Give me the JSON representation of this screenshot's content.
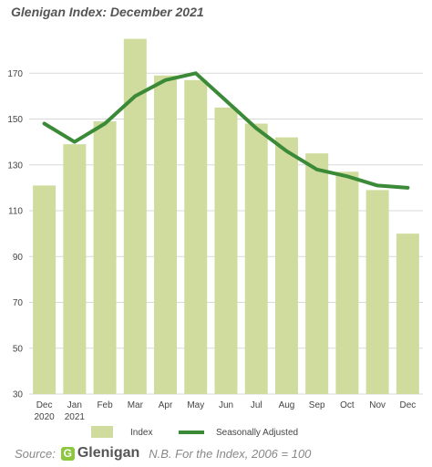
{
  "title": "Glenigan Index: December 2021",
  "chart_data": {
    "type": "bar",
    "categories": [
      [
        "Dec",
        "2020"
      ],
      [
        "Jan",
        "2021"
      ],
      [
        "Feb"
      ],
      [
        "Mar"
      ],
      [
        "Apr"
      ],
      [
        "May"
      ],
      [
        "Jun"
      ],
      [
        "Jul"
      ],
      [
        "Aug"
      ],
      [
        "Sep"
      ],
      [
        "Oct"
      ],
      [
        "Nov"
      ],
      [
        "Dec"
      ]
    ],
    "series": [
      {
        "name": "Index",
        "type": "bar",
        "color": "#cfdc9e",
        "values": [
          121,
          139,
          149,
          185,
          169,
          167,
          155,
          148,
          142,
          135,
          127,
          119,
          100
        ]
      },
      {
        "name": "Seasonally Adjusted",
        "type": "line",
        "color": "#3a8a37",
        "values": [
          148,
          140,
          148,
          160,
          167,
          170,
          158,
          146,
          136,
          128,
          125,
          121,
          120
        ]
      }
    ],
    "ylim": [
      30,
      190
    ],
    "yticks": [
      30,
      50,
      70,
      90,
      110,
      130,
      150,
      170
    ],
    "grid": true,
    "legend": "bottom"
  },
  "footer": {
    "source_label": "Source:",
    "logo_text": "Glenigan",
    "note": "N.B. For the Index, 2006 = 100"
  },
  "icons": {
    "logo": "glenigan-g-logo-icon"
  }
}
